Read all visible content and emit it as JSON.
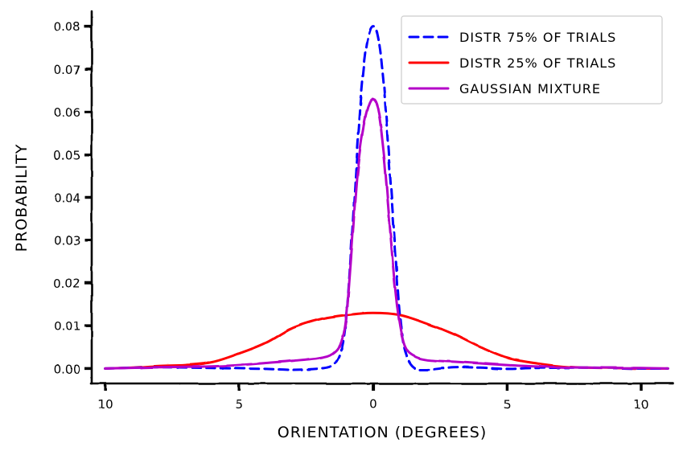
{
  "chart_data": {
    "type": "line",
    "xlabel": "ORIENTATION (DEGREES)",
    "ylabel": "PROBABILITY",
    "xlim": [
      -10.5,
      11.2
    ],
    "ylim": [
      -0.0035,
      0.0835
    ],
    "x_ticks": [
      -10,
      -5,
      0,
      5,
      10
    ],
    "x_tick_labels": [
      "10",
      "5",
      "0",
      "5",
      "10"
    ],
    "y_ticks": [
      0.0,
      0.01,
      0.02,
      0.03,
      0.04,
      0.05,
      0.06,
      0.07,
      0.08
    ],
    "y_tick_labels": [
      "0.00",
      "0.01",
      "0.02",
      "0.03",
      "0.04",
      "0.05",
      "0.06",
      "0.07",
      "0.08"
    ],
    "grid": false,
    "legend_position": "top-right",
    "series": [
      {
        "name": "DISTR 75% OF TRIALS",
        "color": "#0000ff",
        "style": "dashed",
        "x": [
          -10,
          -8,
          -6,
          -4,
          -3,
          -2,
          -1.5,
          -1.2,
          -1,
          -0.8,
          -0.6,
          -0.4,
          -0.2,
          0,
          0.2,
          0.4,
          0.6,
          0.8,
          1,
          1.2,
          1.5,
          2,
          3,
          4,
          5,
          6,
          8,
          10,
          11
        ],
        "y": [
          0.0,
          0.0003,
          0.0001,
          -0.0001,
          -0.0003,
          0.0,
          0.0008,
          0.004,
          0.012,
          0.03,
          0.05,
          0.067,
          0.077,
          0.08,
          0.077,
          0.066,
          0.048,
          0.03,
          0.012,
          0.004,
          0.0003,
          -0.0003,
          0.0003,
          0.0002,
          -0.0001,
          0.0001,
          0.0002,
          0.0,
          0.0
        ]
      },
      {
        "name": "DISTR 25% OF TRIALS",
        "color": "#ff0000",
        "style": "solid",
        "x": [
          -10,
          -9,
          -8,
          -7,
          -6,
          -5,
          -4,
          -3,
          -2,
          -1,
          0,
          1,
          2,
          3,
          4,
          5,
          6,
          7,
          8,
          9,
          10,
          11
        ],
        "y": [
          0.0,
          0.0002,
          0.0006,
          0.0008,
          0.0015,
          0.0035,
          0.006,
          0.0095,
          0.0115,
          0.0125,
          0.013,
          0.0125,
          0.0105,
          0.008,
          0.005,
          0.0025,
          0.0013,
          0.0005,
          0.0002,
          0.0001,
          0.0,
          0.0
        ]
      },
      {
        "name": "GAUSSIAN MIXTURE",
        "color": "#b400c8",
        "style": "solid",
        "x": [
          -10,
          -8,
          -6,
          -5,
          -4,
          -3,
          -2,
          -1.5,
          -1.2,
          -1,
          -0.8,
          -0.6,
          -0.4,
          -0.2,
          0,
          0.2,
          0.4,
          0.6,
          0.8,
          1,
          1.2,
          1.5,
          2,
          3,
          4,
          5,
          6,
          7,
          8,
          10,
          11
        ],
        "y": [
          0.0,
          0.0003,
          0.0005,
          0.0008,
          0.0013,
          0.0018,
          0.0025,
          0.0035,
          0.006,
          0.012,
          0.028,
          0.045,
          0.055,
          0.061,
          0.063,
          0.06,
          0.05,
          0.035,
          0.02,
          0.01,
          0.005,
          0.003,
          0.002,
          0.0016,
          0.0012,
          0.0008,
          0.0005,
          0.0003,
          0.0002,
          0.0001,
          0.0
        ]
      }
    ]
  }
}
